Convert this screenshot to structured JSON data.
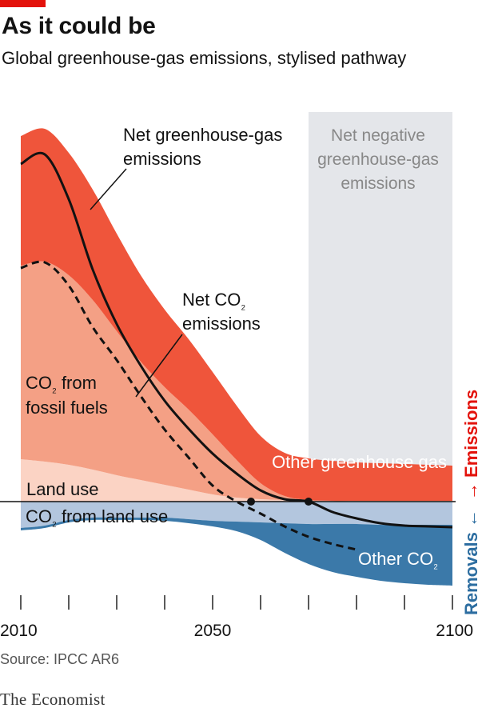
{
  "header": {
    "title": "As it could be",
    "subtitle": "Global greenhouse-gas emissions, stylised pathway"
  },
  "footer": {
    "source": "Source: IPCC AR6",
    "brand": "The Economist"
  },
  "colors": {
    "accent": "#e3120b",
    "other_ghg": "#ef553b",
    "fossil_co2": "#f4a085",
    "land_use_emissions": "#fbd3c4",
    "land_use_removals": "#b3c6de",
    "other_co2_removals": "#3b79a9",
    "net_negative_zone": "#e4e6ea",
    "line": "#121212",
    "emissions_axis": "#e3120b",
    "removals_axis": "#2c6da0"
  },
  "chart_data": {
    "type": "area",
    "stacking": "stacked above and below zero",
    "x": [
      2010,
      2015,
      2020,
      2025,
      2030,
      2035,
      2040,
      2045,
      2050,
      2055,
      2060,
      2065,
      2070,
      2075,
      2080,
      2085,
      2090,
      2095,
      2100
    ],
    "x_ticks": [
      2010,
      2020,
      2030,
      2040,
      2050,
      2060,
      2070,
      2080,
      2090,
      2100
    ],
    "x_tick_labels": [
      "2010",
      "",
      "",
      "",
      "2050",
      "",
      "",
      "",
      "",
      "2100"
    ],
    "xlim": [
      2010,
      2100
    ],
    "ylim": [
      -110,
      480
    ],
    "y_axis_labels": {
      "positive": "Emissions",
      "negative": "Removals"
    },
    "series": [
      {
        "name": "Land use",
        "kind": "emissions",
        "values": [
          53,
          50,
          46,
          40,
          33,
          27,
          21,
          15,
          9,
          5,
          3,
          2,
          1,
          1,
          1,
          1,
          1,
          1,
          1
        ]
      },
      {
        "name": "CO₂ from fossil fuels",
        "kind": "emissions",
        "values": [
          242,
          250,
          237,
          212,
          180,
          148,
          122,
          100,
          75,
          47,
          20,
          5,
          1,
          0,
          0,
          0,
          0,
          0,
          0
        ]
      },
      {
        "name": "Other greenhouse gas",
        "kind": "emissions",
        "values": [
          162,
          166,
          153,
          138,
          122,
          108,
          97,
          88,
          78,
          68,
          59,
          54,
          52,
          50,
          48,
          47,
          46,
          45,
          44
        ]
      },
      {
        "name": "CO₂ from land use",
        "kind": "removals",
        "values": [
          -33,
          -30,
          -23,
          -20,
          -20,
          -20,
          -20,
          -22,
          -24,
          -25,
          -26,
          -27,
          -28,
          -28,
          -28,
          -29,
          -29,
          -29,
          -29
        ]
      },
      {
        "name": "Other CO₂",
        "kind": "removals",
        "values": [
          -3,
          -3,
          -3,
          -3,
          -3,
          -3,
          -4,
          -5,
          -7,
          -12,
          -22,
          -37,
          -50,
          -60,
          -66,
          -70,
          -73,
          -75,
          -76
        ]
      }
    ],
    "lines": [
      {
        "name": "Net greenhouse-gas emissions",
        "style": "solid",
        "x": [
          2010,
          2015,
          2020,
          2025,
          2030,
          2035,
          2040,
          2045,
          2050,
          2055,
          2060,
          2065,
          2070,
          2075,
          2080,
          2085,
          2090,
          2095,
          2100
        ],
        "values": [
          422,
          434,
          378,
          290,
          222,
          170,
          126,
          91,
          60,
          35,
          14,
          3,
          0,
          -13,
          -21,
          -27,
          -30,
          -31,
          -32
        ]
      },
      {
        "name": "Net CO₂ emissions",
        "style": "dashed",
        "x": [
          2010,
          2015,
          2020,
          2025,
          2030,
          2035,
          2040,
          2045,
          2050,
          2055,
          2060,
          2065,
          2070,
          2075,
          2080
        ],
        "values": [
          292,
          299,
          270,
          218,
          177,
          132,
          90,
          55,
          20,
          0,
          -15,
          -31,
          -44,
          -53,
          -60
        ]
      }
    ],
    "markers": [
      {
        "label": "Net zero CO₂",
        "x": 2058,
        "y": 0
      },
      {
        "label": "Net zero greenhouse gas",
        "x": 2070,
        "y": 0
      }
    ],
    "zones": [
      {
        "name": "Net negative greenhouse-gas emissions",
        "x_start": 2070,
        "x_end": 2100
      }
    ],
    "annotations": {
      "net_ghg": [
        "Net greenhouse-gas",
        "emissions"
      ],
      "net_co2": [
        "Net CO",
        "₂",
        "emissions"
      ],
      "zone": [
        "Net negative",
        "greenhouse-gas",
        "emissions"
      ],
      "fossil": [
        "CO",
        "₂",
        " from",
        "fossil fuels"
      ],
      "other_ghg": "Other greenhouse gas",
      "land_use": "Land use",
      "land_use_removals": [
        "CO",
        "₂",
        " from land use"
      ],
      "other_co2": [
        "Other CO",
        "₂"
      ],
      "emissions_axis": "→ Emissions",
      "removals_axis": "Removals ←"
    }
  }
}
